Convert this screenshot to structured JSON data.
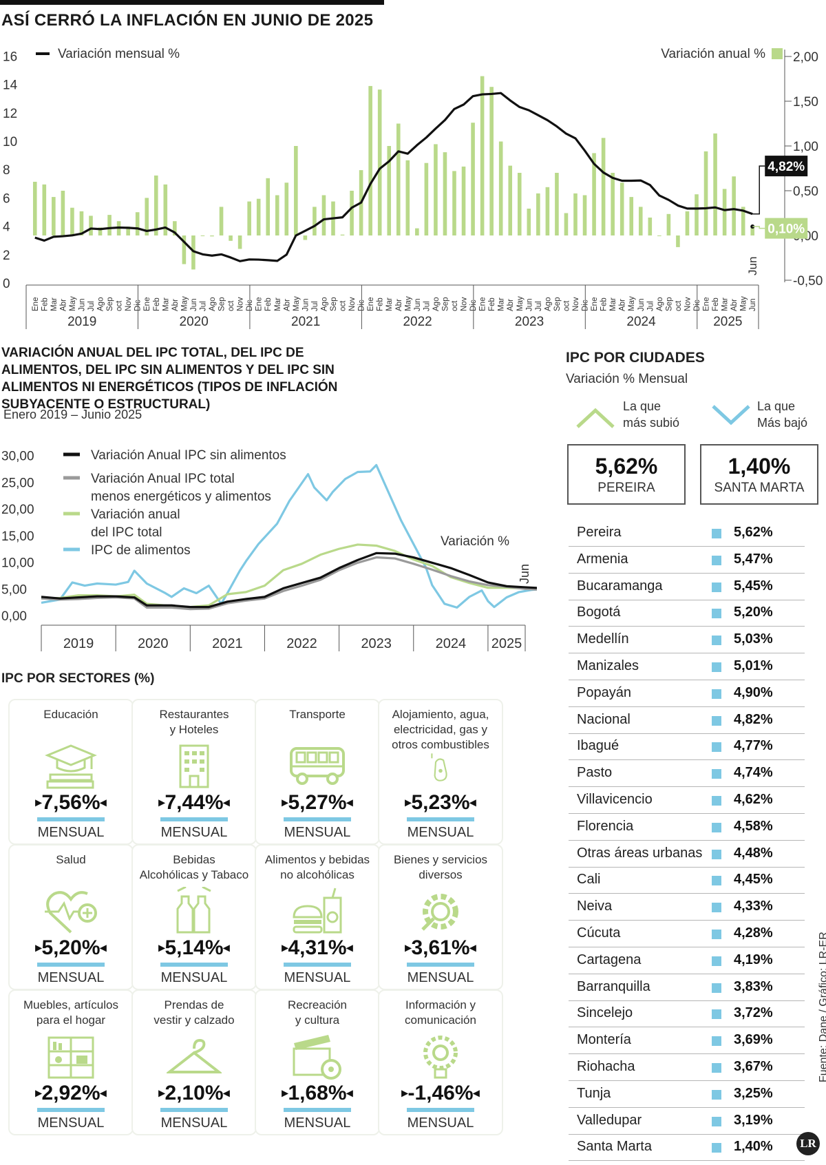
{
  "title": "ASÍ CERRÓ LA INFLACIÓN EN JUNIO DE 2025",
  "chart_data": [
    {
      "type": "bar+line",
      "title": "ASÍ CERRÓ LA INFLACIÓN EN JUNIO DE 2025",
      "legend_line": "Variación mensual %",
      "legend_bar": "Variación anual %",
      "y_left_ticks": [
        "16",
        "14",
        "12",
        "10",
        "8",
        "6",
        "4",
        "2",
        "0"
      ],
      "y_right_ticks": [
        "2,00",
        "1,50",
        "1,00",
        "0,50",
        "0,00",
        "-0,50"
      ],
      "ylim_left": [
        0,
        16
      ],
      "ylim_right": [
        -0.5,
        2.0
      ],
      "months": [
        "Ene",
        "Feb",
        "Mar",
        "Abr",
        "May",
        "Jun",
        "Jul",
        "Ago",
        "Sep",
        "oct",
        "Nov",
        "Dic"
      ],
      "years": [
        "2019",
        "2020",
        "2021",
        "2022",
        "2023",
        "2024",
        "2025"
      ],
      "jun_label": "Jun",
      "line_label": "4,82%",
      "bar_label": "0,10%",
      "bar_values": [
        0.6,
        0.57,
        0.43,
        0.5,
        0.31,
        0.27,
        0.22,
        0.09,
        0.23,
        0.16,
        0.1,
        0.26,
        0.42,
        0.67,
        0.57,
        0.16,
        -0.32,
        -0.38,
        0.0,
        -0.01,
        0.32,
        -0.06,
        -0.15,
        0.38,
        0.41,
        0.64,
        0.45,
        0.59,
        1.0,
        -0.05,
        0.32,
        0.45,
        0.38,
        0.01,
        0.5,
        0.73,
        1.67,
        1.63,
        1.0,
        1.25,
        0.84,
        0.08,
        0.81,
        1.02,
        0.93,
        0.72,
        0.77,
        1.26,
        1.78,
        1.66,
        1.05,
        0.78,
        0.7,
        0.3,
        0.47,
        0.54,
        0.7,
        0.25,
        0.47,
        0.45,
        0.92,
        1.09,
        0.7,
        0.59,
        0.43,
        0.32,
        0.2,
        0.0,
        0.24,
        -0.13,
        0.27,
        0.46,
        0.94,
        1.14,
        0.52,
        0.66,
        0.32,
        0.1
      ],
      "line_values": [
        3.15,
        2.94,
        3.21,
        3.25,
        3.31,
        3.43,
        3.79,
        3.75,
        3.82,
        3.86,
        3.84,
        3.8,
        3.62,
        3.72,
        3.86,
        3.51,
        2.85,
        2.19,
        1.97,
        1.88,
        1.97,
        1.75,
        1.49,
        1.61,
        1.6,
        1.56,
        1.51,
        1.95,
        3.3,
        3.63,
        3.97,
        4.44,
        4.51,
        4.58,
        5.26,
        5.62,
        6.94,
        8.01,
        8.53,
        9.23,
        9.07,
        9.67,
        10.21,
        10.84,
        11.44,
        12.22,
        12.53,
        13.12,
        13.25,
        13.28,
        13.34,
        12.82,
        12.36,
        12.13,
        11.78,
        11.43,
        10.99,
        10.48,
        10.15,
        9.28,
        8.35,
        7.74,
        7.36,
        7.16,
        7.16,
        7.18,
        6.86,
        6.12,
        5.81,
        5.41,
        5.2,
        5.2,
        5.22,
        5.28,
        5.09,
        5.16,
        5.05,
        4.82
      ]
    },
    {
      "type": "line",
      "title": "VARIACIÓN ANUAL DEL IPC TOTAL, DEL IPC DE ALIMENTOS, DEL IPC SIN ALIMENTOS Y DEL IPC SIN ALIMENTOS NI ENERGÉTICOS (TIPOS DE INFLACIÓN SUBYACENTE O ESTRUCTURAL)",
      "subtitle": "Enero 2019 – Junio 2025",
      "annotation": "Variación %",
      "jun_label": "Jun",
      "y_ticks": [
        "30,00",
        "25,00",
        "20,00",
        "15,00",
        "10,00",
        "5,00",
        "0,00"
      ],
      "ylim": [
        0,
        30
      ],
      "years": [
        "2019",
        "2020",
        "2021",
        "2022",
        "2023",
        "2024",
        "2025"
      ],
      "series": [
        {
          "name": "Variación Anual IPC sin alimentos",
          "color": "#111111",
          "points": [
            [
              0,
              3.5
            ],
            [
              3,
              3.2
            ],
            [
              6,
              3.4
            ],
            [
              9,
              3.6
            ],
            [
              12,
              3.6
            ],
            [
              15,
              3.4
            ],
            [
              17,
              1.9
            ],
            [
              21,
              1.9
            ],
            [
              24,
              1.6
            ],
            [
              27,
              1.6
            ],
            [
              30,
              2.6
            ],
            [
              33,
              3.1
            ],
            [
              36,
              3.5
            ],
            [
              39,
              5.1
            ],
            [
              42,
              6.1
            ],
            [
              45,
              7.1
            ],
            [
              48,
              8.9
            ],
            [
              51,
              10.4
            ],
            [
              54,
              11.7
            ],
            [
              57,
              11.6
            ],
            [
              60,
              10.9
            ],
            [
              63,
              9.9
            ],
            [
              66,
              8.9
            ],
            [
              69,
              7.6
            ],
            [
              72,
              6.2
            ],
            [
              75,
              5.5
            ],
            [
              78,
              5.3
            ],
            [
              81,
              5.1
            ]
          ]
        },
        {
          "name": "Variación Anual IPC total menos energéticos y alimentos",
          "color": "#9a9a9a",
          "points": [
            [
              0,
              3.2
            ],
            [
              3,
              3.0
            ],
            [
              6,
              3.1
            ],
            [
              9,
              3.3
            ],
            [
              12,
              3.4
            ],
            [
              15,
              3.2
            ],
            [
              17,
              1.5
            ],
            [
              21,
              1.5
            ],
            [
              24,
              1.2
            ],
            [
              27,
              1.3
            ],
            [
              30,
              2.3
            ],
            [
              33,
              2.8
            ],
            [
              36,
              3.2
            ],
            [
              39,
              4.6
            ],
            [
              42,
              5.6
            ],
            [
              45,
              6.7
            ],
            [
              48,
              8.5
            ],
            [
              51,
              9.9
            ],
            [
              54,
              10.9
            ],
            [
              57,
              10.7
            ],
            [
              60,
              9.7
            ],
            [
              63,
              8.6
            ],
            [
              66,
              7.4
            ],
            [
              69,
              6.4
            ],
            [
              72,
              5.7
            ],
            [
              75,
              5.4
            ],
            [
              78,
              5.0
            ],
            [
              81,
              4.8
            ]
          ]
        },
        {
          "name": "Variación anual del IPC total",
          "color": "#b9d98a",
          "points": [
            [
              0,
              3.2
            ],
            [
              3,
              3.3
            ],
            [
              6,
              3.8
            ],
            [
              9,
              3.8
            ],
            [
              12,
              3.6
            ],
            [
              15,
              3.9
            ],
            [
              17,
              2.2
            ],
            [
              21,
              1.8
            ],
            [
              24,
              1.6
            ],
            [
              27,
              1.9
            ],
            [
              30,
              4.0
            ],
            [
              33,
              4.4
            ],
            [
              36,
              5.6
            ],
            [
              39,
              8.5
            ],
            [
              42,
              9.7
            ],
            [
              45,
              11.4
            ],
            [
              48,
              12.5
            ],
            [
              51,
              13.3
            ],
            [
              54,
              13.1
            ],
            [
              57,
              12.1
            ],
            [
              60,
              10.5
            ],
            [
              63,
              9.3
            ],
            [
              66,
              7.2
            ],
            [
              69,
              6.1
            ],
            [
              72,
              5.2
            ],
            [
              75,
              5.2
            ],
            [
              78,
              5.1
            ],
            [
              81,
              4.82
            ]
          ]
        },
        {
          "name": "IPC de alimentos",
          "color": "#7ec8e3",
          "points": [
            [
              0,
              2.4
            ],
            [
              3,
              3.0
            ],
            [
              5,
              6.2
            ],
            [
              7,
              5.6
            ],
            [
              9,
              6.0
            ],
            [
              12,
              5.8
            ],
            [
              14,
              6.3
            ],
            [
              15,
              8.4
            ],
            [
              17,
              6.0
            ],
            [
              20,
              4.2
            ],
            [
              21,
              3.5
            ],
            [
              23,
              5.1
            ],
            [
              25,
              4.2
            ],
            [
              27,
              5.6
            ],
            [
              29,
              2.2
            ],
            [
              30,
              4.2
            ],
            [
              32,
              8.4
            ],
            [
              33,
              10.2
            ],
            [
              35,
              13.4
            ],
            [
              38,
              17.2
            ],
            [
              40,
              21.5
            ],
            [
              43,
              26.5
            ],
            [
              44,
              24.0
            ],
            [
              46,
              21.6
            ],
            [
              47,
              23.2
            ],
            [
              49,
              25.6
            ],
            [
              51,
              26.9
            ],
            [
              53,
              27.0
            ],
            [
              54,
              28.2
            ],
            [
              56,
              23.0
            ],
            [
              58,
              17.8
            ],
            [
              60,
              13.4
            ],
            [
              62,
              9.0
            ],
            [
              63,
              5.7
            ],
            [
              65,
              2.2
            ],
            [
              67,
              1.5
            ],
            [
              69,
              3.5
            ],
            [
              71,
              4.7
            ],
            [
              72,
              2.7
            ],
            [
              73,
              1.6
            ],
            [
              75,
              3.4
            ],
            [
              77,
              4.4
            ],
            [
              79,
              4.8
            ],
            [
              81,
              5.0
            ]
          ]
        }
      ]
    }
  ],
  "sectors": {
    "title": "IPC POR SECTORES (%)",
    "unit_label": "MENSUAL",
    "items": [
      {
        "name1": "Educación",
        "name2": "",
        "name3": "",
        "value": "7,56%"
      },
      {
        "name1": "Restaurantes",
        "name2": "y Hoteles",
        "name3": "",
        "value": "7,44%"
      },
      {
        "name1": "Transporte",
        "name2": "",
        "name3": "",
        "value": "5,27%"
      },
      {
        "name1": "Alojamiento, agua,",
        "name2": "electricidad, gas y",
        "name3": "otros combustibles",
        "value": "5,23%"
      },
      {
        "name1": "Salud",
        "name2": "",
        "name3": "",
        "value": "5,20%"
      },
      {
        "name1": "Bebidas",
        "name2": "Alcohólicas y Tabaco",
        "name3": "",
        "value": "5,14%"
      },
      {
        "name1": "Alimentos y bebidas",
        "name2": "no alcohólicas",
        "name3": "",
        "value": "4,31%"
      },
      {
        "name1": "Bienes y servicios",
        "name2": "diversos",
        "name3": "",
        "value": "3,61%"
      },
      {
        "name1": "Muebles, artículos",
        "name2": "para el hogar",
        "name3": "",
        "value": "2,92%"
      },
      {
        "name1": "Prendas de",
        "name2": "vestir y calzado",
        "name3": "",
        "value": "2,10%"
      },
      {
        "name1": "Recreación",
        "name2": "y cultura",
        "name3": "",
        "value": "1,68%"
      },
      {
        "name1": "Información y",
        "name2": "comunicación",
        "name3": "",
        "value": "-1,46%"
      }
    ],
    "icons": [
      "graduation-cap-icon",
      "hotel-building-icon",
      "bus-icon",
      "fuel-pump-icon",
      "heart-pulse-icon",
      "bottles-icon",
      "burger-drink-icon",
      "gear-icon",
      "shelves-icon",
      "hanger-icon",
      "clapperboard-icon",
      "lightbulb-gear-icon"
    ]
  },
  "cities": {
    "title": "IPC POR CIUDADES",
    "subtitle": "Variación % Mensual",
    "up_label_1": "La que",
    "up_label_2": "más subió",
    "down_label_1": "La que",
    "down_label_2": "Más bajó",
    "top": {
      "value": "5,62%",
      "city": "PEREIRA"
    },
    "bottom": {
      "value": "1,40%",
      "city": "SANTA MARTA"
    },
    "rows": [
      {
        "city": "Pereira",
        "value": "5,62%"
      },
      {
        "city": "Armenia",
        "value": "5,47%"
      },
      {
        "city": "Bucaramanga",
        "value": "5,45%"
      },
      {
        "city": "Bogotá",
        "value": "5,20%"
      },
      {
        "city": "Medellín",
        "value": "5,03%"
      },
      {
        "city": "Manizales",
        "value": "5,01%"
      },
      {
        "city": "Popayán",
        "value": "4,90%"
      },
      {
        "city": "Nacional",
        "value": "4,82%"
      },
      {
        "city": "Ibagué",
        "value": "4,77%"
      },
      {
        "city": "Pasto",
        "value": "4,74%"
      },
      {
        "city": "Villavicencio",
        "value": "4,62%"
      },
      {
        "city": "Florencia",
        "value": "4,58%"
      },
      {
        "city": "Otras áreas urbanas",
        "value": "4,48%"
      },
      {
        "city": "Cali",
        "value": "4,45%"
      },
      {
        "city": "Neiva",
        "value": "4,33%"
      },
      {
        "city": "Cúcuta",
        "value": "4,28%"
      },
      {
        "city": "Cartagena",
        "value": "4,19%"
      },
      {
        "city": "Barranquilla",
        "value": "3,83%"
      },
      {
        "city": "Sincelejo",
        "value": "3,72%"
      },
      {
        "city": "Montería",
        "value": "3,69%"
      },
      {
        "city": "Riohacha",
        "value": "3,67%"
      },
      {
        "city": "Tunja",
        "value": "3,25%"
      },
      {
        "city": "Valledupar",
        "value": "3,19%"
      },
      {
        "city": "Santa Marta",
        "value": "1,40%"
      }
    ]
  },
  "source": "Fuente: Dane / Gráfico: LR-ER",
  "logo": "LR",
  "colors": {
    "green": "#b9d98a",
    "blue": "#7ec8e3",
    "dark": "#111111",
    "gray": "#9a9a9a"
  }
}
